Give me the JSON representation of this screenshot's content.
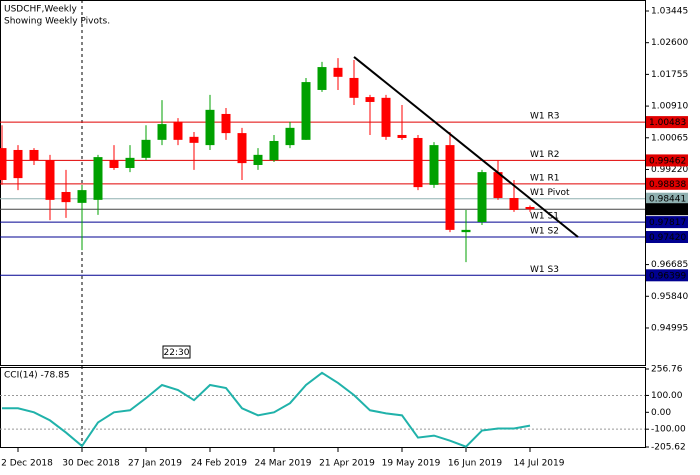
{
  "chart_data": [
    {
      "type": "candlestick",
      "title": "USDCHF,Weekly",
      "subtitle": "Showing Weekly Pivots.",
      "categories": [
        null,
        "2 Dec 2018",
        null,
        null,
        null,
        "30 Dec 2018",
        null,
        null,
        null,
        "27 Jan 2019",
        null,
        null,
        null,
        "24 Feb 2019",
        null,
        null,
        null,
        "24 Mar 2019",
        null,
        null,
        null,
        "21 Apr 2019",
        null,
        null,
        null,
        "19 May 2019",
        null,
        null,
        null,
        "16 Jun 2019",
        null,
        null,
        null,
        "14 Jul 2019"
      ],
      "open": [
        0.9979,
        0.9974,
        0.9974,
        0.9947,
        0.9862,
        0.9833,
        0.9841,
        0.9947,
        0.9926,
        0.9953,
        1.0001,
        1.0049,
        1.0009,
        0.9987,
        1.007,
        1.0019,
        0.9934,
        0.9947,
        0.9987,
        1.0001,
        1.0134,
        1.0193,
        1.0166,
        1.0115,
        1.0113,
        1.0014,
        1.0006,
        0.9881,
        0.9987,
        0.9755,
        0.9782,
        0.9915,
        0.9846,
        0.9822
      ],
      "high": [
        1.004,
        0.9987,
        0.9979,
        0.9961,
        0.9921,
        0.9881,
        0.9961,
        0.9987,
        0.9987,
        1.004,
        1.0107,
        1.0059,
        1.0022,
        1.0121,
        1.0086,
        1.0033,
        0.9979,
        1.0014,
        1.0049,
        1.0166,
        1.0209,
        1.0219,
        1.0214,
        1.0121,
        1.0121,
        1.0094,
        1.0014,
        0.9995,
        1.0022,
        0.9814,
        0.9921,
        0.9947,
        0.9894,
        0.9826
      ],
      "low": [
        0.9881,
        0.9867,
        0.9934,
        0.9787,
        0.9793,
        0.9707,
        0.9801,
        0.9921,
        0.9915,
        0.9947,
        0.9987,
        0.9987,
        0.9921,
        0.9974,
        1.0001,
        0.9894,
        0.9921,
        0.9942,
        0.9979,
        1.0001,
        1.0129,
        1.0134,
        1.0094,
        1.0014,
        1.0001,
        1.0001,
        0.9867,
        0.9873,
        0.9755,
        0.9675,
        0.9774,
        0.9841,
        0.9809,
        0.9809
      ],
      "close": [
        0.9894,
        0.9899,
        0.9947,
        0.9841,
        0.9835,
        0.9867,
        0.9955,
        0.9926,
        0.9953,
        1.0001,
        1.0043,
        1.0001,
        0.9993,
        1.0081,
        1.0019,
        0.9939,
        0.9961,
        0.9998,
        1.0033,
        1.0155,
        1.0195,
        1.0169,
        1.0113,
        1.0102,
        1.0009,
        1.0006,
        0.9875,
        0.9987,
        0.9761,
        0.9761,
        0.9915,
        0.9846,
        0.9814,
        0.9816
      ],
      "up_color": "#00a000",
      "down_color": "#ff0000",
      "ylim": [
        0.94008,
        1.03738
      ],
      "yticks": [
        1.03445,
        {
          "value": 1.026,
          "label": "1.02600"
        },
        1.01755,
        {
          "value": 1.0091,
          "label": "1.00910"
        },
        1.00065,
        {
          "value": 0.9922,
          "label": "0.99220"
        },
        0.96685,
        {
          "value": 0.9584,
          "label": "0.95840"
        },
        0.94995
      ],
      "levels": [
        {
          "name": "W1 R3",
          "value": 1.00483,
          "color": "#e00000"
        },
        {
          "name": "W1 R2",
          "value": 0.99462,
          "color": "#e00000"
        },
        {
          "name": "W1 R1",
          "value": 0.98838,
          "color": "#e00000"
        },
        {
          "name": "W1 Pivot",
          "value": 0.98441,
          "color": "#8fb0b0"
        },
        {
          "name": "W1 S1",
          "value": 0.97817,
          "color": "#000090"
        },
        {
          "name": "W1 S2",
          "value": 0.9742,
          "label": "0.97420",
          "color": "#000090"
        },
        {
          "name": "W1 S3",
          "value": 0.96399,
          "color": "#000090"
        }
      ],
      "last_price": 0.98161,
      "trendline": {
        "x": [
          22,
          36
        ],
        "y": [
          1.0222,
          0.9742
        ]
      },
      "time_label": "22:30"
    },
    {
      "type": "line",
      "title": "CCI(14) -78.85",
      "color": "#20b2aa",
      "values": [
        24,
        24,
        0,
        -48,
        -120,
        -200,
        -60,
        0,
        12,
        84,
        162,
        132,
        72,
        162,
        144,
        24,
        -18,
        0,
        54,
        162,
        234,
        174,
        102,
        12,
        -6,
        -18,
        -150,
        -138,
        -168,
        -204,
        -108,
        -96,
        -96,
        -78.85
      ],
      "ylim": [
        -205.62,
        256.76
      ],
      "yticks": [
        256.76,
        {
          "value": 100,
          "label": "100.00"
        },
        {
          "value": 0,
          "label": "0.00"
        },
        {
          "value": -100,
          "label": "-100.00"
        },
        -205.62
      ]
    }
  ]
}
